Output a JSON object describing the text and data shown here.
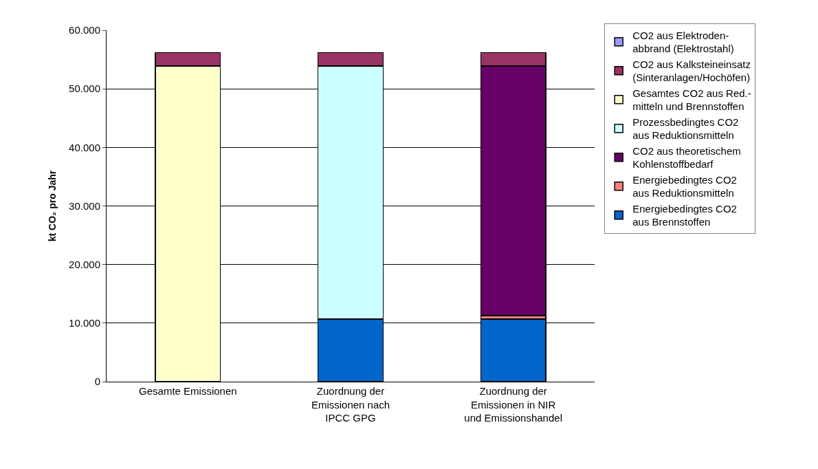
{
  "chart_data": {
    "type": "bar",
    "stacked": true,
    "ylabel": "kt CO₂ pro Jahr",
    "categories": [
      "Gesamte Emissionen",
      "Zuordnung der\nEmissionen nach\nIPCC GPG",
      "Zuordnung der\nEmissionen in NIR\nund Emissionshandel"
    ],
    "series": [
      {
        "name": "Energiebedingtes CO2\naus Brennstoffen",
        "color": "#0066cc",
        "values": [
          null,
          10700,
          10700
        ]
      },
      {
        "name": "Energiebedingtes CO2\naus Reduktionsmitteln",
        "color": "#ff8080",
        "values": [
          null,
          null,
          600
        ]
      },
      {
        "name": "CO2 aus theoretischem\nKohlenstoffbedarf",
        "color": "#660066",
        "values": [
          null,
          null,
          42600
        ]
      },
      {
        "name": "Prozessbedingtes CO2\naus Reduktionsmitteln",
        "color": "#ccffff",
        "values": [
          null,
          43200,
          null
        ]
      },
      {
        "name": "Gesamtes CO2 aus Red.-\nmitteln und Brennstoffen",
        "color": "#ffffcc",
        "values": [
          53900,
          null,
          null
        ]
      },
      {
        "name": "CO2 aus Kalksteineinsatz\n(Sinteranlagen/Hochöfen)",
        "color": "#993366",
        "values": [
          2300,
          2300,
          2300
        ]
      },
      {
        "name": "CO2 aus Elektroden-\nabbrand (Elektrostahl)",
        "color": "#9999ff",
        "values": [
          null,
          null,
          null
        ]
      }
    ],
    "ylim": [
      0,
      60000
    ],
    "yticks": [
      {
        "value": 0,
        "label": "0"
      },
      {
        "value": 10000,
        "label": "10.000"
      },
      {
        "value": 20000,
        "label": "20.000"
      },
      {
        "value": 30000,
        "label": "30.000"
      },
      {
        "value": 40000,
        "label": "40.000"
      },
      {
        "value": 50000,
        "label": "50.000"
      },
      {
        "value": 60000,
        "label": "60.000"
      }
    ],
    "grid": "y",
    "legend": "right"
  }
}
